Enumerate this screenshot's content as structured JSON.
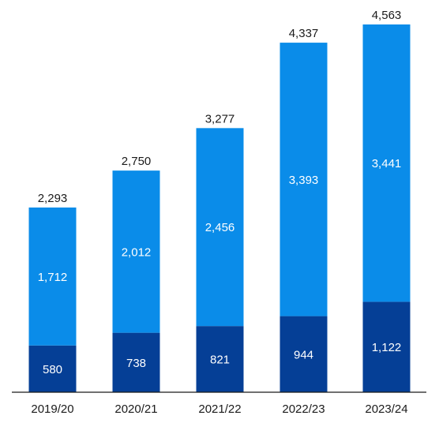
{
  "chart_data": {
    "type": "bar",
    "stacked": true,
    "categories": [
      "2019/20",
      "2020/21",
      "2021/22",
      "2022/23",
      "2023/24"
    ],
    "series": [
      {
        "values": [
          580,
          738,
          821,
          944,
          1122
        ],
        "labels": [
          "580",
          "738",
          "821",
          "944",
          "1,122"
        ],
        "color": "#053f96"
      },
      {
        "values": [
          1712,
          2012,
          2456,
          3393,
          3441
        ],
        "labels": [
          "1,712",
          "2,012",
          "2,456",
          "3,393",
          "3,441"
        ],
        "color": "#0a8ce9"
      }
    ],
    "totals": [
      2293,
      2750,
      3277,
      4337,
      4563
    ],
    "total_labels": [
      "2,293",
      "2,750",
      "3,277",
      "4,337",
      "4,563"
    ],
    "title": "",
    "xlabel": "",
    "ylabel": "",
    "ylim": [
      0,
      4563
    ],
    "grid": false,
    "legend": "none"
  }
}
